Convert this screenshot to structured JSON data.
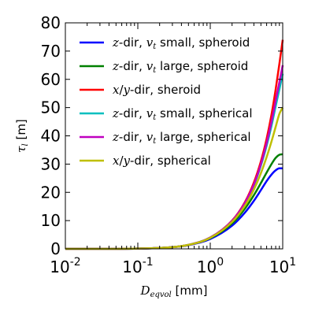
{
  "chart_data": {
    "type": "line",
    "x_scale": "log",
    "xlim": [
      0.01,
      10
    ],
    "ylim": [
      0,
      80
    ],
    "grid": false,
    "legend_position": "top-left",
    "xlabel": {
      "symbol": "D",
      "subscript": "eqvol",
      "unit": " [mm]"
    },
    "ylabel": {
      "symbol": "τ",
      "subscript": "l",
      "unit": " [m]"
    },
    "x_ticks": [
      {
        "base": "10",
        "exp": "-2",
        "value": 0.01
      },
      {
        "base": "10",
        "exp": "-1",
        "value": 0.1
      },
      {
        "base": "10",
        "exp": "0",
        "value": 1
      },
      {
        "base": "10",
        "exp": "1",
        "value": 10
      }
    ],
    "y_ticks": [
      "0",
      "10",
      "20",
      "30",
      "40",
      "50",
      "60",
      "70",
      "80"
    ],
    "x": [
      0.01,
      0.1,
      0.3,
      0.5,
      1,
      2,
      3,
      4,
      5,
      6,
      7,
      8,
      9,
      10
    ],
    "series": [
      {
        "name_parts": [
          {
            "t": "z",
            "i": true
          },
          {
            "t": "-dir, "
          },
          {
            "t": "v",
            "i": true
          },
          {
            "t": "t",
            "i": true,
            "sub": true
          },
          {
            "t": " small, spheroid"
          }
        ],
        "color": "#0000ff",
        "values": [
          0,
          0.1,
          0.6,
          1.3,
          3.5,
          8.2,
          12.8,
          17,
          20.8,
          24,
          26.3,
          27.8,
          28.5,
          28.5
        ]
      },
      {
        "name_parts": [
          {
            "t": "z",
            "i": true
          },
          {
            "t": "-dir, "
          },
          {
            "t": "v",
            "i": true
          },
          {
            "t": "t",
            "i": true,
            "sub": true
          },
          {
            "t": " large, spheroid"
          }
        ],
        "color": "#008000",
        "values": [
          0,
          0.1,
          0.6,
          1.4,
          3.8,
          9,
          14.2,
          19,
          23.3,
          27,
          30,
          32.2,
          33.3,
          33.5
        ]
      },
      {
        "name_parts": [
          {
            "t": "x",
            "i": true
          },
          {
            "t": "/"
          },
          {
            "t": "y",
            "i": true
          },
          {
            "t": "-dir, sheroid"
          }
        ],
        "color": "#ff0000",
        "values": [
          0,
          0.1,
          0.6,
          1.4,
          4,
          10,
          16.5,
          23.5,
          31,
          39,
          47.5,
          56.5,
          65.5,
          74
        ]
      },
      {
        "name_parts": [
          {
            "t": "z",
            "i": true
          },
          {
            "t": "-dir, "
          },
          {
            "t": "v",
            "i": true
          },
          {
            "t": "t",
            "i": true,
            "sub": true
          },
          {
            "t": " small, spherical"
          }
        ],
        "color": "#00bfbf",
        "values": [
          0,
          0.1,
          0.6,
          1.4,
          4,
          9.8,
          16,
          22.5,
          29.5,
          36.5,
          43.5,
          50.5,
          56.5,
          62
        ]
      },
      {
        "name_parts": [
          {
            "t": "z",
            "i": true
          },
          {
            "t": "-dir, "
          },
          {
            "t": "v",
            "i": true
          },
          {
            "t": "t",
            "i": true,
            "sub": true
          },
          {
            "t": " large, spherical"
          }
        ],
        "color": "#bf00bf",
        "values": [
          0,
          0.1,
          0.6,
          1.4,
          4,
          9.9,
          16.2,
          22.8,
          30,
          37.5,
          45,
          52.5,
          59,
          65
        ]
      },
      {
        "name_parts": [
          {
            "t": "x",
            "i": true
          },
          {
            "t": "/"
          },
          {
            "t": "y",
            "i": true
          },
          {
            "t": "-dir, spherical"
          }
        ],
        "color": "#bfbf00",
        "values": [
          0,
          0.1,
          0.6,
          1.4,
          3.9,
          9.5,
          15.2,
          21,
          26.8,
          32.5,
          38,
          43.2,
          47.8,
          50
        ]
      }
    ]
  }
}
